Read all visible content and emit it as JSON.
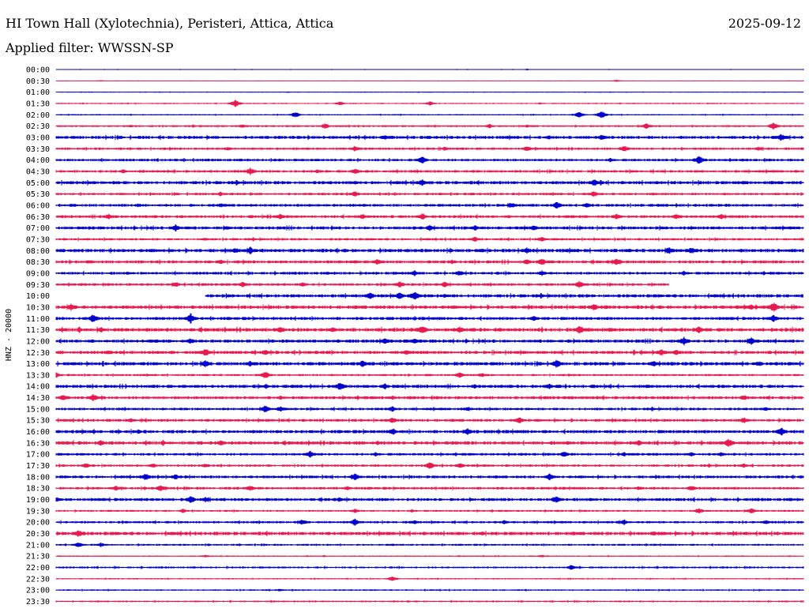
{
  "header": {
    "station": "HI Town Hall (Xylotechnia), Peristeri, Attica, Attica",
    "date": "2025-09-12",
    "filter": "Applied filter: WWSSN-SP"
  },
  "chart_data": {
    "type": "line",
    "title": "HI Town Hall (Xylotechnia), Peristeri, Attica, Attica",
    "subtitle": "Applied filter: WWSSN-SP",
    "ylabel": "HNZ - 20000",
    "xlabel": "",
    "grid": false,
    "legend": "none",
    "colors": [
      "#0000cc",
      "#e8194f"
    ],
    "rows": [
      {
        "time": "00:00",
        "color": "#0000cc",
        "level": 0.3,
        "start": 0,
        "end": 1,
        "bursts": [
          [
            0.55,
            0.8
          ],
          [
            0.63,
            1.2
          ]
        ]
      },
      {
        "time": "00:30",
        "color": "#e8194f",
        "level": 0.3,
        "start": 0,
        "end": 1,
        "bursts": [
          [
            0.06,
            1
          ],
          [
            0.75,
            1.5
          ]
        ]
      },
      {
        "time": "01:00",
        "color": "#0000cc",
        "level": 0.4,
        "start": 0,
        "end": 1,
        "bursts": [
          [
            0.31,
            1
          ],
          [
            0.5,
            1
          ]
        ]
      },
      {
        "time": "01:30",
        "color": "#e8194f",
        "level": 0.6,
        "start": 0,
        "end": 1,
        "bursts": [
          [
            0.24,
            5
          ],
          [
            0.38,
            3
          ],
          [
            0.5,
            3
          ]
        ]
      },
      {
        "time": "02:00",
        "color": "#0000cc",
        "level": 0.6,
        "start": 0,
        "end": 1,
        "bursts": [
          [
            0.32,
            4
          ],
          [
            0.7,
            4
          ],
          [
            0.73,
            5
          ]
        ]
      },
      {
        "time": "02:30",
        "color": "#e8194f",
        "level": 0.9,
        "start": 0,
        "end": 1,
        "bursts": [
          [
            0.1,
            2
          ],
          [
            0.25,
            3
          ],
          [
            0.36,
            4
          ],
          [
            0.58,
            3
          ],
          [
            0.63,
            2
          ],
          [
            0.79,
            4
          ],
          [
            0.96,
            5
          ]
        ]
      },
      {
        "time": "03:00",
        "color": "#0000cc",
        "level": 1.4,
        "start": 0,
        "end": 1,
        "bursts": [
          [
            0.44,
            4
          ],
          [
            0.66,
            3
          ],
          [
            0.73,
            4
          ],
          [
            0.97,
            5
          ]
        ]
      },
      {
        "time": "03:30",
        "color": "#e8194f",
        "level": 1.1,
        "start": 0,
        "end": 1,
        "bursts": [
          [
            0.1,
            2
          ],
          [
            0.23,
            3
          ],
          [
            0.4,
            4
          ],
          [
            0.52,
            3
          ],
          [
            0.63,
            4
          ],
          [
            0.76,
            5
          ],
          [
            0.94,
            3
          ]
        ]
      },
      {
        "time": "04:00",
        "color": "#0000cc",
        "level": 1.2,
        "start": 0,
        "end": 1,
        "bursts": [
          [
            0.17,
            2
          ],
          [
            0.3,
            2
          ],
          [
            0.49,
            5
          ],
          [
            0.86,
            6
          ]
        ]
      },
      {
        "time": "04:30",
        "color": "#e8194f",
        "level": 1.2,
        "start": 0,
        "end": 1,
        "bursts": [
          [
            0.09,
            3
          ],
          [
            0.26,
            5
          ],
          [
            0.35,
            3
          ],
          [
            0.4,
            4
          ]
        ]
      },
      {
        "time": "05:00",
        "color": "#0000cc",
        "level": 1.5,
        "start": 0,
        "end": 1,
        "bursts": [
          [
            0.08,
            2
          ],
          [
            0.4,
            3
          ],
          [
            0.49,
            5
          ],
          [
            0.72,
            5
          ],
          [
            0.92,
            3
          ]
        ]
      },
      {
        "time": "05:30",
        "color": "#e8194f",
        "level": 1.1,
        "start": 0,
        "end": 1,
        "bursts": [
          [
            0.13,
            2
          ],
          [
            0.22,
            3
          ],
          [
            0.4,
            4
          ],
          [
            0.72,
            4
          ],
          [
            0.8,
            2
          ]
        ]
      },
      {
        "time": "06:00",
        "color": "#0000cc",
        "level": 1.3,
        "start": 0,
        "end": 1,
        "bursts": [
          [
            0.11,
            3
          ],
          [
            0.22,
            3
          ],
          [
            0.61,
            4
          ],
          [
            0.67,
            5
          ],
          [
            0.71,
            4
          ]
        ]
      },
      {
        "time": "06:30",
        "color": "#e8194f",
        "level": 1.3,
        "start": 0,
        "end": 1,
        "bursts": [
          [
            0.07,
            4
          ],
          [
            0.3,
            4
          ],
          [
            0.41,
            4
          ],
          [
            0.49,
            5
          ],
          [
            0.75,
            4
          ],
          [
            0.83,
            4
          ],
          [
            0.89,
            4
          ]
        ]
      },
      {
        "time": "07:00",
        "color": "#0000cc",
        "level": 1.4,
        "start": 0,
        "end": 1,
        "bursts": [
          [
            0.16,
            5
          ],
          [
            0.23,
            3
          ],
          [
            0.5,
            4
          ],
          [
            0.56,
            4
          ],
          [
            0.64,
            4
          ],
          [
            0.85,
            3
          ]
        ]
      },
      {
        "time": "07:30",
        "color": "#e8194f",
        "level": 1.1,
        "start": 0,
        "end": 1,
        "bursts": [
          [
            0.2,
            2
          ],
          [
            0.56,
            4
          ],
          [
            0.65,
            4
          ],
          [
            0.67,
            2
          ]
        ]
      },
      {
        "time": "08:00",
        "color": "#0000cc",
        "level": 1.6,
        "start": 0,
        "end": 1,
        "bursts": [
          [
            0.24,
            4
          ],
          [
            0.26,
            5
          ],
          [
            0.57,
            3
          ],
          [
            0.63,
            4
          ],
          [
            0.82,
            5
          ],
          [
            0.85,
            5
          ]
        ]
      },
      {
        "time": "08:30",
        "color": "#e8194f",
        "level": 1.4,
        "start": 0,
        "end": 1,
        "bursts": [
          [
            0.22,
            4
          ],
          [
            0.4,
            3
          ],
          [
            0.43,
            4
          ],
          [
            0.53,
            3
          ],
          [
            0.63,
            4
          ],
          [
            0.65,
            5
          ],
          [
            0.75,
            5
          ]
        ]
      },
      {
        "time": "09:00",
        "color": "#0000cc",
        "level": 1.3,
        "start": 0,
        "end": 1,
        "bursts": [
          [
            0.48,
            4
          ],
          [
            0.54,
            4
          ],
          [
            0.65,
            4
          ]
        ]
      },
      {
        "time": "09:30",
        "color": "#e8194f",
        "level": 1.2,
        "start": 0,
        "end": 0.82,
        "bursts": [
          [
            0.16,
            4
          ],
          [
            0.25,
            4
          ],
          [
            0.33,
            3
          ],
          [
            0.46,
            5
          ],
          [
            0.52,
            4
          ],
          [
            0.7,
            5
          ]
        ]
      },
      {
        "time": "10:00",
        "color": "#0000cc",
        "level": 1.5,
        "start": 0.2,
        "end": 1,
        "bursts": [
          [
            0.42,
            5
          ],
          [
            0.46,
            5
          ],
          [
            0.48,
            7
          ],
          [
            0.52,
            3
          ]
        ]
      },
      {
        "time": "10:30",
        "color": "#e8194f",
        "level": 1.6,
        "start": 0,
        "end": 1,
        "bursts": [
          [
            0.02,
            5
          ],
          [
            0.16,
            3
          ],
          [
            0.72,
            5
          ],
          [
            0.93,
            4
          ],
          [
            0.96,
            7
          ]
        ]
      },
      {
        "time": "11:00",
        "color": "#0000cc",
        "level": 1.4,
        "start": 0,
        "end": 1,
        "bursts": [
          [
            0.05,
            6
          ],
          [
            0.18,
            7
          ],
          [
            0.64,
            4
          ],
          [
            0.96,
            5
          ]
        ]
      },
      {
        "time": "11:30",
        "color": "#e8194f",
        "level": 1.7,
        "start": 0,
        "end": 1,
        "bursts": [
          [
            0.06,
            4
          ],
          [
            0.3,
            5
          ],
          [
            0.37,
            4
          ],
          [
            0.49,
            6
          ],
          [
            0.54,
            5
          ],
          [
            0.7,
            6
          ],
          [
            0.86,
            5
          ]
        ]
      },
      {
        "time": "12:00",
        "color": "#0000cc",
        "level": 1.5,
        "start": 0,
        "end": 1,
        "bursts": [
          [
            0.18,
            4
          ],
          [
            0.44,
            4
          ],
          [
            0.48,
            4
          ],
          [
            0.84,
            6
          ],
          [
            0.93,
            5
          ]
        ]
      },
      {
        "time": "12:30",
        "color": "#e8194f",
        "level": 1.5,
        "start": 0,
        "end": 1,
        "bursts": [
          [
            0.07,
            3
          ],
          [
            0.2,
            6
          ],
          [
            0.28,
            4
          ],
          [
            0.47,
            4
          ],
          [
            0.81,
            5
          ],
          [
            0.83,
            4
          ]
        ]
      },
      {
        "time": "13:00",
        "color": "#0000cc",
        "level": 1.6,
        "start": 0,
        "end": 1,
        "bursts": [
          [
            0.2,
            5
          ],
          [
            0.26,
            4
          ],
          [
            0.41,
            5
          ],
          [
            0.67,
            6
          ],
          [
            0.8,
            4
          ],
          [
            0.94,
            4
          ]
        ]
      },
      {
        "time": "13:30",
        "color": "#e8194f",
        "level": 1.0,
        "start": 0,
        "end": 1,
        "bursts": [
          [
            0.0,
            4
          ],
          [
            0.28,
            5
          ],
          [
            0.54,
            4
          ],
          [
            0.57,
            3
          ]
        ]
      },
      {
        "time": "14:00",
        "color": "#0000cc",
        "level": 1.5,
        "start": 0,
        "end": 1,
        "bursts": [
          [
            0.28,
            3
          ],
          [
            0.38,
            6
          ],
          [
            0.44,
            4
          ],
          [
            0.56,
            3
          ],
          [
            0.66,
            4
          ]
        ]
      },
      {
        "time": "14:30",
        "color": "#e8194f",
        "level": 1.4,
        "start": 0,
        "end": 1,
        "bursts": [
          [
            0.01,
            5
          ],
          [
            0.05,
            5
          ],
          [
            0.3,
            3
          ],
          [
            0.45,
            3
          ],
          [
            0.92,
            4
          ]
        ]
      },
      {
        "time": "15:00",
        "color": "#0000cc",
        "level": 1.2,
        "start": 0,
        "end": 1,
        "bursts": [
          [
            0.28,
            5
          ],
          [
            0.3,
            4
          ],
          [
            0.45,
            4
          ],
          [
            0.55,
            3
          ],
          [
            0.95,
            3
          ]
        ]
      },
      {
        "time": "15:30",
        "color": "#e8194f",
        "level": 1.3,
        "start": 0,
        "end": 1,
        "bursts": [
          [
            0.1,
            3
          ],
          [
            0.45,
            4
          ],
          [
            0.62,
            5
          ],
          [
            0.92,
            4
          ]
        ]
      },
      {
        "time": "16:00",
        "color": "#0000cc",
        "level": 1.5,
        "start": 0,
        "end": 1,
        "bursts": [
          [
            0.05,
            3
          ],
          [
            0.11,
            3
          ],
          [
            0.45,
            5
          ],
          [
            0.55,
            5
          ],
          [
            0.97,
            6
          ]
        ]
      },
      {
        "time": "16:30",
        "color": "#e8194f",
        "level": 1.6,
        "start": 0,
        "end": 1,
        "bursts": [
          [
            0.06,
            4
          ],
          [
            0.22,
            4
          ],
          [
            0.43,
            3
          ],
          [
            0.78,
            4
          ],
          [
            0.9,
            6
          ]
        ]
      },
      {
        "time": "17:00",
        "color": "#0000cc",
        "level": 1.2,
        "start": 0,
        "end": 1,
        "bursts": [
          [
            0.34,
            5
          ],
          [
            0.68,
            4
          ],
          [
            0.76,
            3
          ],
          [
            0.85,
            3
          ],
          [
            0.89,
            3
          ]
        ]
      },
      {
        "time": "17:30",
        "color": "#e8194f",
        "level": 1.1,
        "start": 0,
        "end": 1,
        "bursts": [
          [
            0.04,
            4
          ],
          [
            0.13,
            3
          ],
          [
            0.2,
            3
          ],
          [
            0.5,
            5
          ],
          [
            0.54,
            4
          ],
          [
            0.92,
            3
          ]
        ]
      },
      {
        "time": "18:00",
        "color": "#0000cc",
        "level": 1.3,
        "start": 0,
        "end": 1,
        "bursts": [
          [
            0.12,
            5
          ],
          [
            0.16,
            4
          ],
          [
            0.4,
            5
          ],
          [
            0.66,
            5
          ]
        ]
      },
      {
        "time": "18:30",
        "color": "#e8194f",
        "level": 1.2,
        "start": 0,
        "end": 1,
        "bursts": [
          [
            0.08,
            4
          ],
          [
            0.14,
            5
          ],
          [
            0.26,
            4
          ],
          [
            0.39,
            3
          ],
          [
            0.78,
            3
          ],
          [
            0.85,
            4
          ]
        ]
      },
      {
        "time": "19:00",
        "color": "#0000cc",
        "level": 1.4,
        "start": 0,
        "end": 1,
        "bursts": [
          [
            0.0,
            4
          ],
          [
            0.18,
            5
          ],
          [
            0.2,
            4
          ],
          [
            0.38,
            3
          ],
          [
            0.67,
            5
          ]
        ]
      },
      {
        "time": "19:30",
        "color": "#e8194f",
        "level": 0.9,
        "start": 0,
        "end": 1,
        "bursts": [
          [
            0.17,
            3
          ],
          [
            0.4,
            3
          ],
          [
            0.86,
            4
          ],
          [
            0.93,
            4
          ]
        ]
      },
      {
        "time": "20:00",
        "color": "#0000cc",
        "level": 1.1,
        "start": 0,
        "end": 1,
        "bursts": [
          [
            0.33,
            4
          ],
          [
            0.4,
            5
          ],
          [
            0.48,
            3
          ],
          [
            0.6,
            3
          ],
          [
            0.76,
            4
          ],
          [
            0.95,
            3
          ]
        ]
      },
      {
        "time": "20:30",
        "color": "#e8194f",
        "level": 1.6,
        "start": 0,
        "end": 1,
        "bursts": [
          [
            0.03,
            5
          ],
          [
            0.57,
            3
          ],
          [
            0.8,
            3
          ]
        ]
      },
      {
        "time": "21:00",
        "color": "#0000cc",
        "level": 0.9,
        "start": 0,
        "end": 1,
        "bursts": [
          [
            0.03,
            4
          ],
          [
            0.06,
            3
          ],
          [
            0.45,
            2
          ]
        ]
      },
      {
        "time": "21:30",
        "color": "#e8194f",
        "level": 0.6,
        "start": 0,
        "end": 1,
        "bursts": [
          [
            0.2,
            2
          ],
          [
            0.65,
            2
          ]
        ]
      },
      {
        "time": "22:00",
        "color": "#0000cc",
        "level": 0.9,
        "start": 0,
        "end": 1,
        "bursts": [
          [
            0.69,
            4
          ]
        ]
      },
      {
        "time": "22:30",
        "color": "#e8194f",
        "level": 0.6,
        "start": 0,
        "end": 1,
        "bursts": [
          [
            0.45,
            4
          ]
        ]
      },
      {
        "time": "23:00",
        "color": "#0000cc",
        "level": 0.7,
        "start": 0,
        "end": 1,
        "bursts": [
          [
            0.3,
            2
          ]
        ]
      },
      {
        "time": "23:30",
        "color": "#e8194f",
        "level": 0.8,
        "start": 0,
        "end": 1,
        "bursts": []
      }
    ]
  }
}
